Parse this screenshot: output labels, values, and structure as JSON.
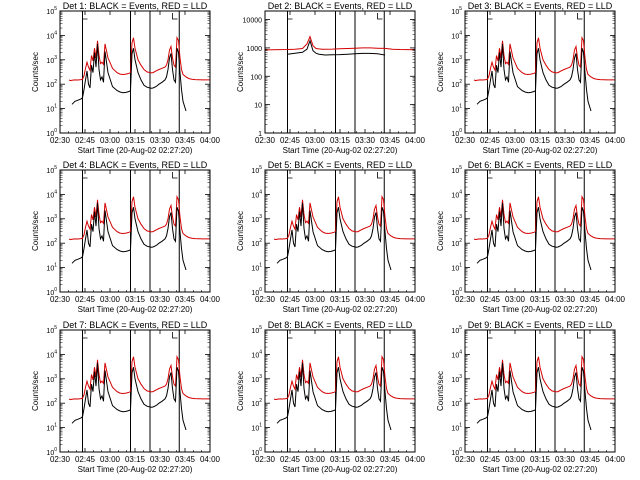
{
  "chart_data": [
    {
      "type": "line",
      "title": "Det 1: BLACK = Events, RED = LLD",
      "xlabel": "Start Time (20-Aug-02 02:27:20)",
      "ylabel": "Counts/sec",
      "yscale": "log",
      "ylim": [
        1,
        100000
      ],
      "yticks": [
        {
          "v": 1,
          "m": "0"
        },
        {
          "v": 10,
          "m": "1"
        },
        {
          "v": 100,
          "m": "2"
        },
        {
          "v": 1000,
          "m": "3"
        },
        {
          "v": 10000,
          "m": "4"
        },
        {
          "v": 100000,
          "m": "5"
        }
      ],
      "xlim": [
        0,
        100
      ],
      "xtick_labels": [
        "02:30",
        "02:45",
        "03:00",
        "03:15",
        "03:30",
        "03:45",
        "04:00"
      ],
      "vlines": [
        15,
        47,
        60,
        79.5
      ],
      "interval_marks": [
        15,
        75
      ],
      "colors": {
        "events": "#000000",
        "lld": "#d40000"
      },
      "profile": "ab"
    },
    {
      "type": "line",
      "title": "Det 2: BLACK = Events, RED = LLD",
      "xlabel": "Start Time (20-Aug-02 02:27:20)",
      "ylabel": "Counts/sec",
      "yscale": "log",
      "ylim": [
        1,
        20000
      ],
      "yticks": [
        {
          "v": 1,
          "t": "1"
        },
        {
          "v": 10,
          "t": "10"
        },
        {
          "v": 100,
          "t": "100"
        },
        {
          "v": 1000,
          "t": "1000"
        },
        {
          "v": 10000,
          "t": "10000"
        }
      ],
      "xlim": [
        0,
        100
      ],
      "xtick_labels": [
        "02:30",
        "02:45",
        "03:00",
        "03:15",
        "03:30",
        "03:45",
        "04:00"
      ],
      "vlines": [
        15,
        47,
        60,
        79.5
      ],
      "interval_marks": [
        15,
        75
      ],
      "colors": {
        "events": "#000000",
        "lld": "#d40000"
      },
      "profile": "det2"
    },
    {
      "type": "line",
      "title": "Det 3: BLACK = Events, RED = LLD",
      "xlabel": "Start Time (20-Aug-02 02:27:20)",
      "ylabel": "Counts/sec",
      "yscale": "log",
      "ylim": [
        1,
        100000
      ],
      "yticks": [
        {
          "v": 1,
          "m": "0"
        },
        {
          "v": 10,
          "m": "1"
        },
        {
          "v": 100,
          "m": "2"
        },
        {
          "v": 1000,
          "m": "3"
        },
        {
          "v": 10000,
          "m": "4"
        },
        {
          "v": 100000,
          "m": "5"
        }
      ],
      "xlim": [
        0,
        100
      ],
      "xtick_labels": [
        "02:30",
        "02:45",
        "03:00",
        "03:15",
        "03:30",
        "03:45",
        "04:00"
      ],
      "vlines": [
        15,
        47,
        60,
        79.5
      ],
      "interval_marks": [
        15,
        75
      ],
      "colors": {
        "events": "#000000",
        "lld": "#d40000"
      },
      "profile": "ab"
    },
    {
      "type": "line",
      "title": "Det 4: BLACK = Events, RED = LLD",
      "xlabel": "Start Time (20-Aug-02 02:27:20)",
      "ylabel": "Counts/sec",
      "yscale": "log",
      "ylim": [
        1,
        100000
      ],
      "yticks": [
        {
          "v": 1,
          "m": "0"
        },
        {
          "v": 10,
          "m": "1"
        },
        {
          "v": 100,
          "m": "2"
        },
        {
          "v": 1000,
          "m": "3"
        },
        {
          "v": 10000,
          "m": "4"
        },
        {
          "v": 100000,
          "m": "5"
        }
      ],
      "xlim": [
        0,
        100
      ],
      "xtick_labels": [
        "02:30",
        "02:45",
        "03:00",
        "03:15",
        "03:30",
        "03:45",
        "04:00"
      ],
      "vlines": [
        15,
        47,
        60,
        79.5
      ],
      "interval_marks": [
        15,
        75
      ],
      "colors": {
        "events": "#000000",
        "lld": "#d40000"
      },
      "profile": "ab"
    },
    {
      "type": "line",
      "title": "Det 5: BLACK = Events, RED = LLD",
      "xlabel": "Start Time (20-Aug-02 02:27:20)",
      "ylabel": "Counts/sec",
      "yscale": "log",
      "ylim": [
        1,
        100000
      ],
      "yticks": [
        {
          "v": 1,
          "m": "0"
        },
        {
          "v": 10,
          "m": "1"
        },
        {
          "v": 100,
          "m": "2"
        },
        {
          "v": 1000,
          "m": "3"
        },
        {
          "v": 10000,
          "m": "4"
        },
        {
          "v": 100000,
          "m": "5"
        }
      ],
      "xlim": [
        0,
        100
      ],
      "xtick_labels": [
        "02:30",
        "02:45",
        "03:00",
        "03:15",
        "03:30",
        "03:45",
        "04:00"
      ],
      "vlines": [
        15,
        47,
        60,
        79.5
      ],
      "interval_marks": [
        15,
        75
      ],
      "colors": {
        "events": "#000000",
        "lld": "#d40000"
      },
      "profile": "ab"
    },
    {
      "type": "line",
      "title": "Det 6: BLACK = Events, RED = LLD",
      "xlabel": "Start Time (20-Aug-02 02:27:20)",
      "ylabel": "Counts/sec",
      "yscale": "log",
      "ylim": [
        1,
        100000
      ],
      "yticks": [
        {
          "v": 1,
          "m": "0"
        },
        {
          "v": 10,
          "m": "1"
        },
        {
          "v": 100,
          "m": "2"
        },
        {
          "v": 1000,
          "m": "3"
        },
        {
          "v": 10000,
          "m": "4"
        },
        {
          "v": 100000,
          "m": "5"
        }
      ],
      "xlim": [
        0,
        100
      ],
      "xtick_labels": [
        "02:30",
        "02:45",
        "03:00",
        "03:15",
        "03:30",
        "03:45",
        "04:00"
      ],
      "vlines": [
        15,
        47,
        60,
        79.5
      ],
      "interval_marks": [
        15,
        75
      ],
      "colors": {
        "events": "#000000",
        "lld": "#d40000"
      },
      "profile": "ab"
    },
    {
      "type": "line",
      "title": "Det 7: BLACK = Events, RED = LLD",
      "xlabel": "Start Time (20-Aug-02 02:27:20)",
      "ylabel": "Counts/sec",
      "yscale": "log",
      "ylim": [
        1,
        100000
      ],
      "yticks": [
        {
          "v": 1,
          "m": "0"
        },
        {
          "v": 10,
          "m": "1"
        },
        {
          "v": 100,
          "m": "2"
        },
        {
          "v": 1000,
          "m": "3"
        },
        {
          "v": 10000,
          "m": "4"
        },
        {
          "v": 100000,
          "m": "5"
        }
      ],
      "xlim": [
        0,
        100
      ],
      "xtick_labels": [
        "02:30",
        "02:45",
        "03:00",
        "03:15",
        "03:30",
        "03:45",
        "04:00"
      ],
      "vlines": [
        15,
        47,
        60,
        79.5
      ],
      "interval_marks": [
        15,
        75
      ],
      "colors": {
        "events": "#000000",
        "lld": "#d40000"
      },
      "profile": "ab"
    },
    {
      "type": "line",
      "title": "Det 8: BLACK = Events, RED = LLD",
      "xlabel": "Start Time (20-Aug-02 02:27:20)",
      "ylabel": "Counts/sec",
      "yscale": "log",
      "ylim": [
        1,
        100000
      ],
      "yticks": [
        {
          "v": 1,
          "m": "0"
        },
        {
          "v": 10,
          "m": "1"
        },
        {
          "v": 100,
          "m": "2"
        },
        {
          "v": 1000,
          "m": "3"
        },
        {
          "v": 10000,
          "m": "4"
        },
        {
          "v": 100000,
          "m": "5"
        }
      ],
      "xlim": [
        0,
        100
      ],
      "xtick_labels": [
        "02:30",
        "02:45",
        "03:00",
        "03:15",
        "03:30",
        "03:45",
        "04:00"
      ],
      "vlines": [
        15,
        47,
        60,
        79.5
      ],
      "interval_marks": [
        15,
        75
      ],
      "colors": {
        "events": "#000000",
        "lld": "#d40000"
      },
      "profile": "ab"
    },
    {
      "type": "line",
      "title": "Det 9: BLACK = Events, RED = LLD",
      "xlabel": "Start Time (20-Aug-02 02:27:20)",
      "ylabel": "Counts/sec",
      "yscale": "log",
      "ylim": [
        1,
        100000
      ],
      "yticks": [
        {
          "v": 1,
          "m": "0"
        },
        {
          "v": 10,
          "m": "1"
        },
        {
          "v": 100,
          "m": "2"
        },
        {
          "v": 1000,
          "m": "3"
        },
        {
          "v": 10000,
          "m": "4"
        },
        {
          "v": 100000,
          "m": "5"
        }
      ],
      "xlim": [
        0,
        100
      ],
      "xtick_labels": [
        "02:30",
        "02:45",
        "03:00",
        "03:15",
        "03:30",
        "03:45",
        "04:00"
      ],
      "vlines": [
        15,
        47,
        60,
        79.5
      ],
      "interval_marks": [
        15,
        75
      ],
      "colors": {
        "events": "#000000",
        "lld": "#d40000"
      },
      "profile": "ab"
    }
  ],
  "series_profiles": {
    "ab": {
      "x": [
        6,
        7,
        8,
        10,
        12,
        14,
        15,
        16,
        17,
        18,
        19,
        20,
        21,
        22,
        23,
        24,
        25,
        26,
        27,
        28,
        29,
        30,
        32,
        35,
        38,
        40,
        42,
        44,
        46,
        47,
        48,
        49,
        50,
        52,
        54,
        56,
        58,
        60,
        61,
        62,
        64,
        66,
        68,
        70,
        71,
        72,
        73,
        74,
        75,
        76,
        77,
        78,
        79,
        80,
        81,
        82,
        84,
        86,
        88,
        90,
        95,
        100
      ],
      "lld": [
        150,
        140,
        145,
        150,
        148,
        155,
        160,
        220,
        450,
        800,
        500,
        380,
        1500,
        900,
        3000,
        1200,
        6000,
        1500,
        700,
        800,
        650,
        4500,
        1200,
        450,
        300,
        260,
        250,
        260,
        280,
        300,
        5000,
        8000,
        3000,
        1000,
        600,
        400,
        320,
        300,
        290,
        300,
        350,
        400,
        450,
        500,
        600,
        1000,
        2500,
        3500,
        1200,
        600,
        500,
        8000,
        6000,
        1200,
        400,
        250,
        200,
        170,
        160,
        155,
        150,
        150
      ],
      "events": [
        null,
        null,
        15,
        20,
        22,
        25,
        28,
        60,
        150,
        350,
        100,
        70,
        600,
        300,
        2000,
        500,
        4500,
        400,
        150,
        200,
        120,
        2200,
        300,
        80,
        55,
        48,
        45,
        46,
        50,
        55,
        1800,
        3000,
        1000,
        300,
        150,
        90,
        75,
        70,
        68,
        70,
        80,
        100,
        120,
        150,
        200,
        400,
        1200,
        1800,
        400,
        150,
        120,
        3000,
        2000,
        300,
        60,
        20,
        8,
        null,
        null,
        null,
        null,
        null
      ]
    },
    "det2": {
      "x": [
        0,
        5,
        10,
        15,
        20,
        25,
        28,
        30,
        32,
        34,
        36,
        38,
        40,
        45,
        50,
        55,
        60,
        65,
        70,
        75,
        80,
        85,
        90,
        95,
        100
      ],
      "lld": [
        850,
        860,
        870,
        880,
        900,
        950,
        1400,
        2500,
        1200,
        950,
        920,
        900,
        900,
        910,
        930,
        950,
        980,
        1000,
        1000,
        980,
        960,
        900,
        880,
        870,
        860
      ],
      "events": [
        null,
        null,
        null,
        600,
        650,
        700,
        900,
        1800,
        800,
        650,
        600,
        580,
        560,
        570,
        580,
        600,
        620,
        640,
        640,
        620,
        560,
        null,
        null,
        null,
        null
      ]
    }
  }
}
